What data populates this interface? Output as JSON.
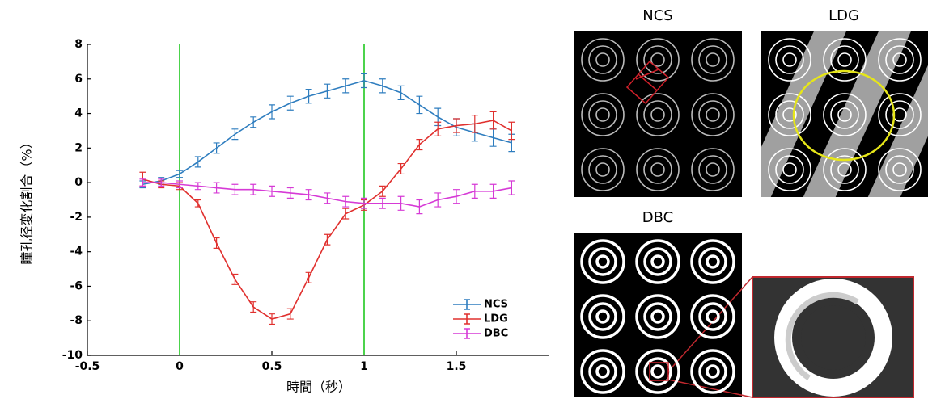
{
  "chart_data": {
    "type": "errorbar-line",
    "x_label": "時間（秒）",
    "y_label": "瞳孔径変化割合（%）",
    "x": [
      -0.2,
      -0.1,
      0,
      0.1,
      0.2,
      0.3,
      0.4,
      0.5,
      0.6,
      0.7,
      0.8,
      0.9,
      1.0,
      1.1,
      1.2,
      1.3,
      1.4,
      1.5,
      1.6,
      1.7,
      1.8
    ],
    "series": [
      {
        "name": "NCS",
        "color": "#2e7dbf",
        "values": [
          -0.1,
          0.1,
          0.5,
          1.2,
          2.0,
          2.8,
          3.5,
          4.1,
          4.6,
          5.0,
          5.3,
          5.6,
          5.9,
          5.6,
          5.2,
          4.5,
          3.8,
          3.2,
          2.9,
          2.6,
          2.3
        ],
        "errors": [
          0.2,
          0.2,
          0.2,
          0.3,
          0.3,
          0.3,
          0.3,
          0.4,
          0.4,
          0.4,
          0.4,
          0.4,
          0.4,
          0.4,
          0.4,
          0.5,
          0.5,
          0.5,
          0.5,
          0.5,
          0.5
        ]
      },
      {
        "name": "LDG",
        "color": "#e0302e",
        "values": [
          0.2,
          -0.1,
          -0.2,
          -1.2,
          -3.5,
          -5.6,
          -7.2,
          -7.9,
          -7.6,
          -5.5,
          -3.3,
          -1.8,
          -1.3,
          -0.5,
          0.8,
          2.2,
          3.1,
          3.3,
          3.4,
          3.6,
          3.0
        ],
        "errors": [
          0.4,
          0.2,
          0.2,
          0.2,
          0.3,
          0.3,
          0.3,
          0.3,
          0.3,
          0.3,
          0.3,
          0.3,
          0.3,
          0.3,
          0.3,
          0.3,
          0.4,
          0.4,
          0.5,
          0.5,
          0.5
        ]
      },
      {
        "name": "DBC",
        "color": "#d63ad6",
        "values": [
          0.0,
          0.0,
          -0.1,
          -0.2,
          -0.3,
          -0.4,
          -0.4,
          -0.5,
          -0.6,
          -0.7,
          -0.9,
          -1.1,
          -1.2,
          -1.2,
          -1.2,
          -1.4,
          -1.0,
          -0.8,
          -0.5,
          -0.5,
          -0.3
        ],
        "errors": [
          0.2,
          0.2,
          0.2,
          0.2,
          0.3,
          0.3,
          0.3,
          0.3,
          0.3,
          0.3,
          0.3,
          0.3,
          0.3,
          0.3,
          0.4,
          0.4,
          0.4,
          0.4,
          0.4,
          0.4,
          0.4
        ]
      }
    ],
    "vlines": [
      0,
      1
    ],
    "vline_color": "#4cd34c",
    "xlim": [
      -0.5,
      2.0
    ],
    "xticks": [
      -0.5,
      0,
      0.5,
      1,
      1.5
    ],
    "ylim": [
      -10,
      8
    ],
    "yticks": [
      -10,
      -8,
      -6,
      -4,
      -2,
      0,
      2,
      4,
      6,
      8
    ],
    "legend": "lower right"
  },
  "stimulus_panels": [
    {
      "title": "NCS"
    },
    {
      "title": "LDG"
    },
    {
      "title": "DBC"
    }
  ]
}
